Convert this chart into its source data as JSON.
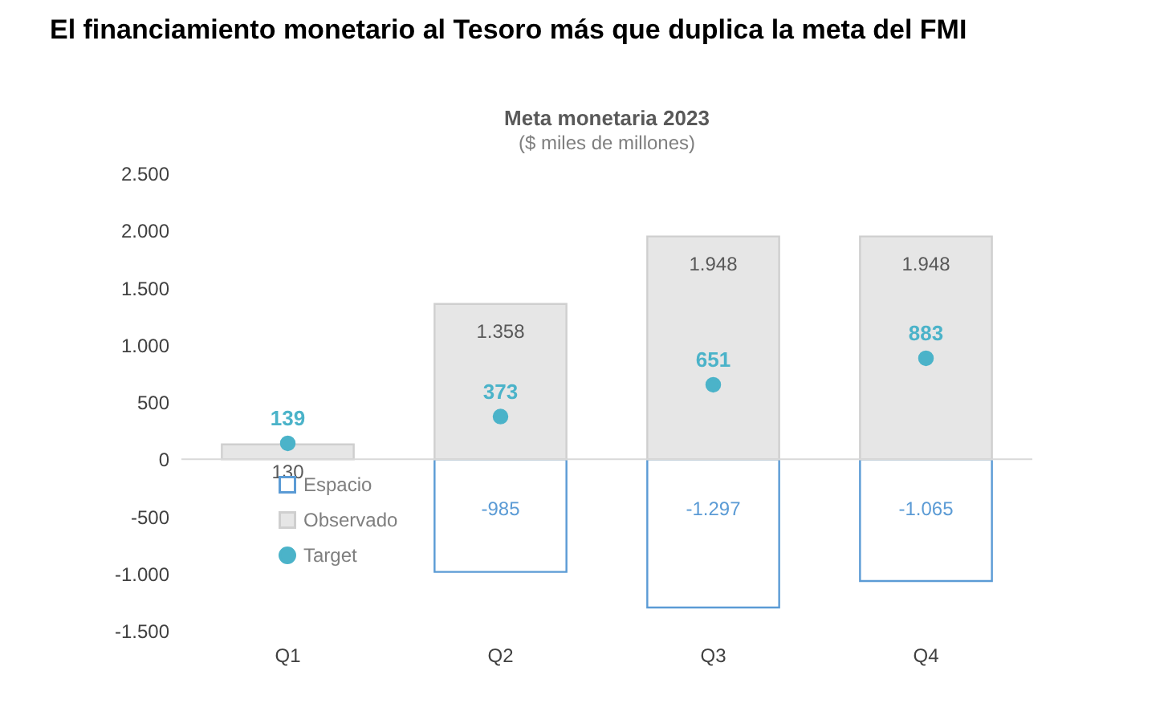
{
  "chart_data": {
    "type": "bar",
    "title": "El financiamiento monetario al Tesoro más que duplica la meta del FMI",
    "subtitle": "Meta monetaria 2023\n($ miles de millones)",
    "categories": [
      "Q1",
      "Q2",
      "Q3",
      "Q4"
    ],
    "series": [
      {
        "name": "Espacio",
        "color": "#5b9bd5",
        "values": [
          null,
          -985,
          -1297,
          -1065
        ],
        "value_labels": [
          null,
          "-985",
          "-1.297",
          "-1.065"
        ]
      },
      {
        "name": "Observado",
        "color": "#e6e6e6",
        "values": [
          130,
          1358,
          1948,
          1948
        ],
        "value_labels": [
          "130",
          "1.358",
          "1.948",
          "1.948"
        ]
      },
      {
        "name": "Target",
        "type": "scatter",
        "color": "#4bb3c9",
        "values": [
          139,
          373,
          651,
          883
        ],
        "value_labels": [
          "139",
          "373",
          "651",
          "883"
        ]
      }
    ],
    "ylim": [
      -1500,
      2500
    ],
    "yticks": [
      {
        "value": -1500,
        "label": "-1.500"
      },
      {
        "value": -1000,
        "label": "-1.000"
      },
      -500,
      0,
      500,
      {
        "value": 1000,
        "label": "1.000"
      },
      {
        "value": 1500,
        "label": "1.500"
      },
      {
        "value": 2000,
        "label": "2.000"
      },
      {
        "value": 2500,
        "label": "2.500"
      }
    ],
    "ref_lines": [
      {
        "axis": "y",
        "value": 0,
        "color": "#d9d9d9"
      }
    ],
    "legend": "bottom left",
    "stacked": true,
    "grid": false
  }
}
